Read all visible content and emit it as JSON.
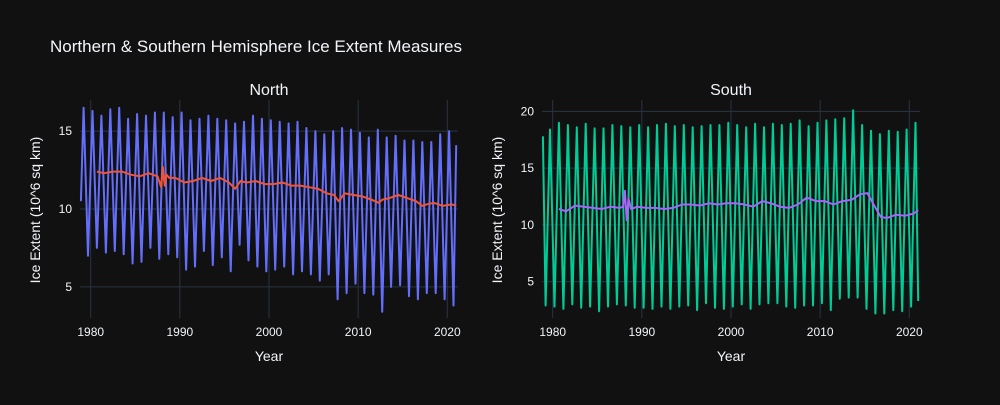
{
  "title": "Northern & Southern Hemisphere Ice Extent Measures",
  "colors": {
    "background": "#111111",
    "grid": "#283442",
    "text": "#f2f5fa",
    "north_monthly": "#636efa",
    "north_annual": "#ef553b",
    "south_monthly": "#00cc96",
    "south_annual": "#ab63fa"
  },
  "chart_data": [
    {
      "type": "line",
      "subplot_title": "North",
      "xlabel": "Year",
      "ylabel": "Ice Extent (10^6 sq km)",
      "xlim": [
        1978.8,
        2021.2
      ],
      "ylim": [
        3.0,
        17.0
      ],
      "xticks": [
        1980,
        1990,
        2000,
        2010,
        2020
      ],
      "yticks": [
        5,
        10,
        15
      ],
      "grid": true,
      "series": [
        {
          "role": "monthly",
          "color": "#636efa",
          "x": [
            1978.9,
            1979.2,
            1979.7,
            1980.2,
            1980.7,
            1981.2,
            1981.7,
            1982.2,
            1982.7,
            1983.2,
            1983.7,
            1984.2,
            1984.7,
            1985.2,
            1985.7,
            1986.2,
            1986.7,
            1987.2,
            1987.7,
            1988.2,
            1988.7,
            1989.2,
            1989.7,
            1990.2,
            1990.7,
            1991.2,
            1991.7,
            1992.2,
            1992.7,
            1993.2,
            1993.7,
            1994.2,
            1994.7,
            1995.2,
            1995.7,
            1996.2,
            1996.7,
            1997.2,
            1997.7,
            1998.2,
            1998.7,
            1999.2,
            1999.7,
            2000.2,
            2000.7,
            2001.2,
            2001.7,
            2002.2,
            2002.7,
            2003.2,
            2003.7,
            2004.2,
            2004.7,
            2005.2,
            2005.7,
            2006.2,
            2006.7,
            2007.2,
            2007.7,
            2008.2,
            2008.7,
            2009.2,
            2009.7,
            2010.2,
            2010.7,
            2011.2,
            2011.7,
            2012.2,
            2012.7,
            2013.2,
            2013.7,
            2014.2,
            2014.7,
            2015.2,
            2015.7,
            2016.2,
            2016.7,
            2017.2,
            2017.7,
            2018.2,
            2018.7,
            2019.2,
            2019.7,
            2020.2,
            2020.7,
            2021.0
          ],
          "y": [
            10.5,
            16.5,
            7.0,
            16.3,
            7.5,
            16.0,
            7.2,
            16.4,
            7.3,
            16.5,
            7.1,
            15.8,
            6.5,
            16.1,
            6.6,
            16.0,
            7.5,
            16.2,
            6.8,
            16.2,
            7.1,
            15.9,
            6.9,
            16.2,
            6.1,
            15.7,
            6.3,
            15.8,
            7.3,
            16.0,
            6.4,
            15.8,
            6.9,
            15.7,
            6.0,
            15.5,
            7.7,
            15.6,
            6.7,
            16.0,
            6.3,
            15.8,
            6.0,
            15.7,
            6.1,
            15.6,
            6.3,
            15.5,
            5.8,
            15.6,
            6.0,
            15.2,
            5.8,
            15.0,
            5.4,
            14.8,
            5.8,
            15.0,
            4.2,
            15.2,
            4.6,
            15.1,
            5.2,
            14.9,
            4.6,
            14.6,
            4.5,
            15.1,
            3.4,
            14.6,
            5.0,
            14.7,
            5.1,
            14.4,
            4.4,
            14.4,
            4.2,
            14.3,
            4.6,
            14.3,
            4.6,
            14.8,
            4.2,
            15.0,
            3.8,
            14.1
          ]
        },
        {
          "role": "annual",
          "color": "#ef553b",
          "x": [
            1980.7,
            1981.5,
            1982.5,
            1983.5,
            1984.5,
            1985.5,
            1986.5,
            1987.5,
            1987.9,
            1988.1,
            1988.3,
            1988.5,
            1988.8,
            1989.5,
            1990.5,
            1991.5,
            1992.5,
            1993.5,
            1994.5,
            1995.5,
            1996.2,
            1996.8,
            1997.5,
            1998.5,
            1999.5,
            2000.5,
            2001.5,
            2002.5,
            2003.5,
            2004.5,
            2005.5,
            2006.5,
            2007.3,
            2007.8,
            2008.5,
            2009.5,
            2010.5,
            2011.5,
            2012.3,
            2012.7,
            2013.5,
            2014.5,
            2015.5,
            2016.5,
            2017.2,
            2017.7,
            2018.5,
            2019.5,
            2020.5,
            2021.0
          ],
          "y": [
            12.4,
            12.3,
            12.4,
            12.4,
            12.2,
            12.1,
            12.3,
            12.1,
            11.4,
            12.7,
            11.5,
            12.2,
            12.0,
            12.0,
            11.7,
            11.8,
            12.0,
            11.8,
            12.0,
            11.7,
            11.3,
            11.8,
            11.7,
            11.8,
            11.6,
            11.6,
            11.7,
            11.5,
            11.5,
            11.4,
            11.3,
            11.0,
            10.9,
            10.5,
            11.0,
            10.9,
            10.8,
            10.6,
            10.4,
            10.6,
            10.7,
            10.9,
            10.7,
            10.5,
            10.2,
            10.3,
            10.4,
            10.2,
            10.3,
            10.2
          ]
        }
      ]
    },
    {
      "type": "line",
      "subplot_title": "South",
      "xlabel": "Year",
      "ylabel": "Ice Extent (10^6 sq km)",
      "xlim": [
        1978.8,
        2021.2
      ],
      "ylim": [
        1.8,
        21.0
      ],
      "xticks": [
        1980,
        1990,
        2000,
        2010,
        2020
      ],
      "yticks": [
        5,
        10,
        15,
        20
      ],
      "grid": true,
      "series": [
        {
          "role": "monthly",
          "color": "#00cc96",
          "x": [
            1978.9,
            1979.2,
            1979.7,
            1980.2,
            1980.7,
            1981.2,
            1981.7,
            1982.2,
            1982.7,
            1983.2,
            1983.7,
            1984.2,
            1984.7,
            1985.2,
            1985.7,
            1986.2,
            1986.7,
            1987.2,
            1987.7,
            1988.2,
            1988.7,
            1989.2,
            1989.7,
            1990.2,
            1990.7,
            1991.2,
            1991.7,
            1992.2,
            1992.7,
            1993.2,
            1993.7,
            1994.2,
            1994.7,
            1995.2,
            1995.7,
            1996.2,
            1996.7,
            1997.2,
            1997.7,
            1998.2,
            1998.7,
            1999.2,
            1999.7,
            2000.2,
            2000.7,
            2001.2,
            2001.7,
            2002.2,
            2002.7,
            2003.2,
            2003.7,
            2004.2,
            2004.7,
            2005.2,
            2005.7,
            2006.2,
            2006.7,
            2007.2,
            2007.7,
            2008.2,
            2008.7,
            2009.2,
            2009.7,
            2010.2,
            2010.7,
            2011.2,
            2011.7,
            2012.2,
            2012.7,
            2013.2,
            2013.7,
            2014.2,
            2014.7,
            2015.2,
            2015.7,
            2016.2,
            2016.7,
            2017.2,
            2017.7,
            2018.2,
            2018.7,
            2019.2,
            2019.7,
            2020.2,
            2020.7,
            2021.0
          ],
          "y": [
            17.8,
            2.9,
            18.4,
            2.8,
            19.0,
            2.6,
            18.8,
            3.0,
            18.6,
            2.7,
            18.9,
            2.8,
            18.5,
            2.4,
            18.5,
            2.8,
            18.8,
            3.0,
            18.7,
            2.9,
            18.6,
            2.7,
            18.8,
            2.7,
            18.6,
            2.6,
            18.8,
            2.8,
            18.9,
            2.6,
            18.7,
            2.8,
            18.8,
            2.9,
            18.6,
            2.5,
            18.7,
            3.1,
            18.8,
            2.7,
            18.8,
            2.6,
            19.0,
            2.8,
            18.8,
            3.0,
            18.6,
            2.6,
            18.9,
            3.0,
            18.6,
            3.1,
            18.9,
            3.1,
            18.8,
            2.8,
            18.9,
            2.7,
            19.2,
            2.9,
            18.7,
            2.9,
            19.0,
            3.1,
            19.2,
            2.5,
            19.3,
            3.5,
            19.4,
            3.6,
            20.1,
            3.6,
            18.8,
            2.6,
            18.3,
            2.2,
            18.0,
            2.2,
            18.3,
            2.5,
            18.2,
            2.4,
            18.4,
            2.8,
            19.0,
            3.3
          ]
        },
        {
          "role": "annual",
          "color": "#ab63fa",
          "x": [
            1980.7,
            1981.5,
            1982.5,
            1983.5,
            1984.5,
            1985.5,
            1986.5,
            1987.5,
            1987.9,
            1988.1,
            1988.3,
            1988.5,
            1988.8,
            1989.5,
            1990.5,
            1991.5,
            1992.5,
            1993.5,
            1994.5,
            1995.5,
            1996.5,
            1997.5,
            1998.5,
            1999.5,
            2000.5,
            2001.5,
            2002.5,
            2003.5,
            2004.5,
            2005.5,
            2006.5,
            2007.5,
            2008.5,
            2009.5,
            2010.5,
            2011.5,
            2012.5,
            2013.5,
            2014.5,
            2015.3,
            2016.0,
            2016.8,
            2017.5,
            2018.5,
            2019.5,
            2020.5,
            2021.0
          ],
          "y": [
            11.4,
            11.2,
            11.7,
            11.6,
            11.5,
            11.4,
            11.6,
            11.5,
            11.6,
            13.0,
            10.4,
            12.3,
            11.4,
            11.6,
            11.5,
            11.5,
            11.4,
            11.5,
            11.8,
            11.8,
            11.7,
            11.9,
            11.8,
            11.9,
            11.9,
            11.8,
            11.6,
            12.1,
            11.9,
            11.6,
            11.5,
            11.8,
            12.4,
            12.1,
            12.1,
            11.8,
            12.1,
            12.2,
            12.7,
            12.8,
            11.8,
            10.7,
            10.6,
            10.9,
            10.8,
            11.0,
            11.3
          ]
        }
      ]
    }
  ]
}
